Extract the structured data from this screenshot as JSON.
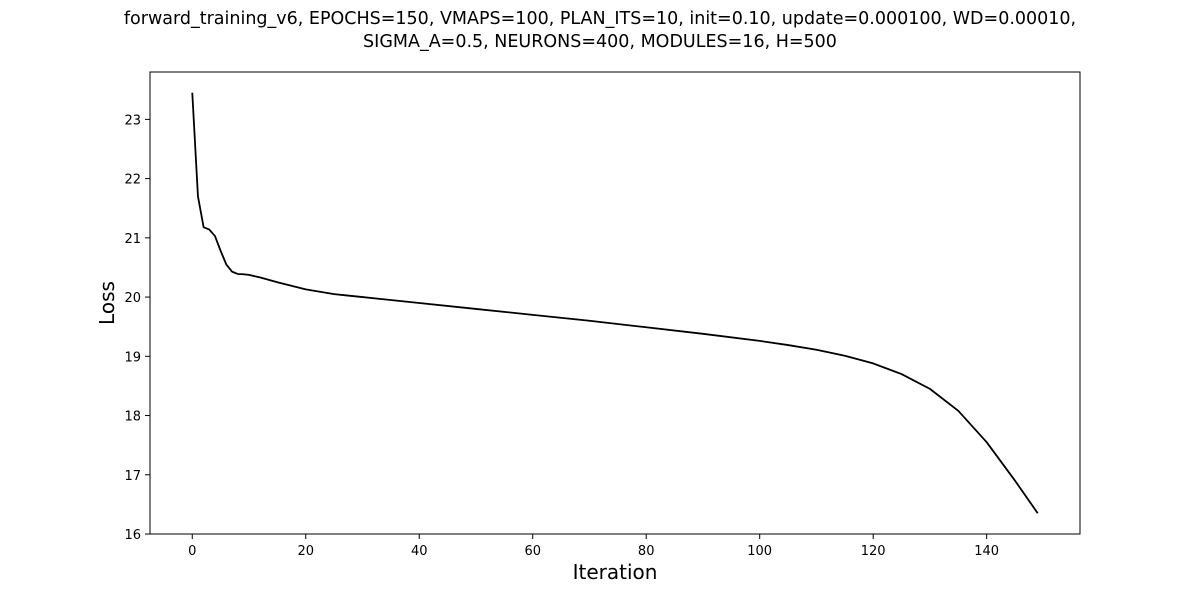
{
  "chart_data": {
    "type": "line",
    "title_lines": [
      "forward_training_v6, EPOCHS=150, VMAPS=100, PLAN_ITS=10, init=0.10, update=0.000100, WD=0.00010,",
      "SIGMA_A=0.5, NEURONS=400, MODULES=16, H=500"
    ],
    "xlabel": "Iteration",
    "ylabel": "Loss",
    "xlim": [
      -7.45,
      156.45
    ],
    "ylim": [
      16.0,
      23.8
    ],
    "xticks": [
      0,
      20,
      40,
      60,
      80,
      100,
      120,
      140
    ],
    "yticks": [
      16,
      17,
      18,
      19,
      20,
      21,
      22,
      23
    ],
    "grid": false,
    "legend": false,
    "series": [
      {
        "color": "#000000",
        "x": [
          0,
          1,
          2,
          3,
          4,
          5,
          6,
          7,
          8,
          9,
          10,
          12,
          15,
          20,
          25,
          27,
          30,
          40,
          50,
          60,
          70,
          80,
          90,
          100,
          105,
          110,
          115,
          120,
          125,
          130,
          135,
          140,
          145,
          149
        ],
        "y": [
          23.45,
          21.7,
          21.18,
          21.14,
          21.03,
          20.78,
          20.55,
          20.43,
          20.39,
          20.385,
          20.375,
          20.33,
          20.25,
          20.13,
          20.05,
          20.03,
          20.0,
          19.9,
          19.8,
          19.7,
          19.6,
          19.49,
          19.38,
          19.26,
          19.19,
          19.11,
          19.01,
          18.88,
          18.7,
          18.45,
          18.08,
          17.55,
          16.9,
          16.35
        ]
      }
    ]
  }
}
